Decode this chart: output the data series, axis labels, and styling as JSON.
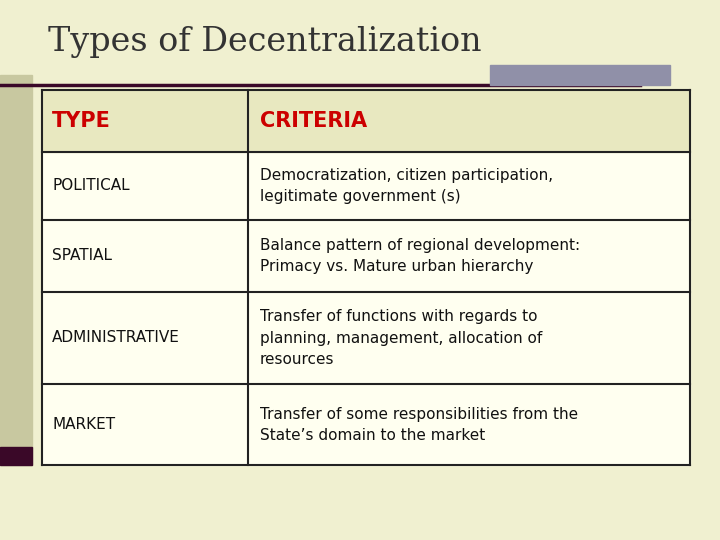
{
  "title": "Types of Decentralization",
  "background_color": "#f0f0d0",
  "left_bar_color": "#c8c8a0",
  "left_accent_color": "#3a0828",
  "top_accent_color": "#9090a8",
  "header_type_color": "#cc0000",
  "header_criteria_color": "#cc0000",
  "col1_header": "TYPE",
  "col2_header": "CRITERIA",
  "rows": [
    {
      "type": "POLITICAL",
      "criteria": "Democratization, citizen participation,\nlegitimate government (s)"
    },
    {
      "type": "SPATIAL",
      "criteria": "Balance pattern of regional development:\nPrimacy vs. Mature urban hierarchy"
    },
    {
      "type": "ADMINISTRATIVE",
      "criteria": "Transfer of functions with regards to\nplanning, management, allocation of\nresources"
    },
    {
      "type": "MARKET",
      "criteria": "Transfer of some responsibilities from the\nState’s domain to the market"
    }
  ],
  "title_fontsize": 24,
  "header_fontsize": 15,
  "cell_fontsize": 11,
  "title_color": "#333333",
  "cell_text_color": "#111111",
  "table_bg": "#fffff0",
  "header_bg": "#e8e8c0",
  "line_color": "#222222"
}
